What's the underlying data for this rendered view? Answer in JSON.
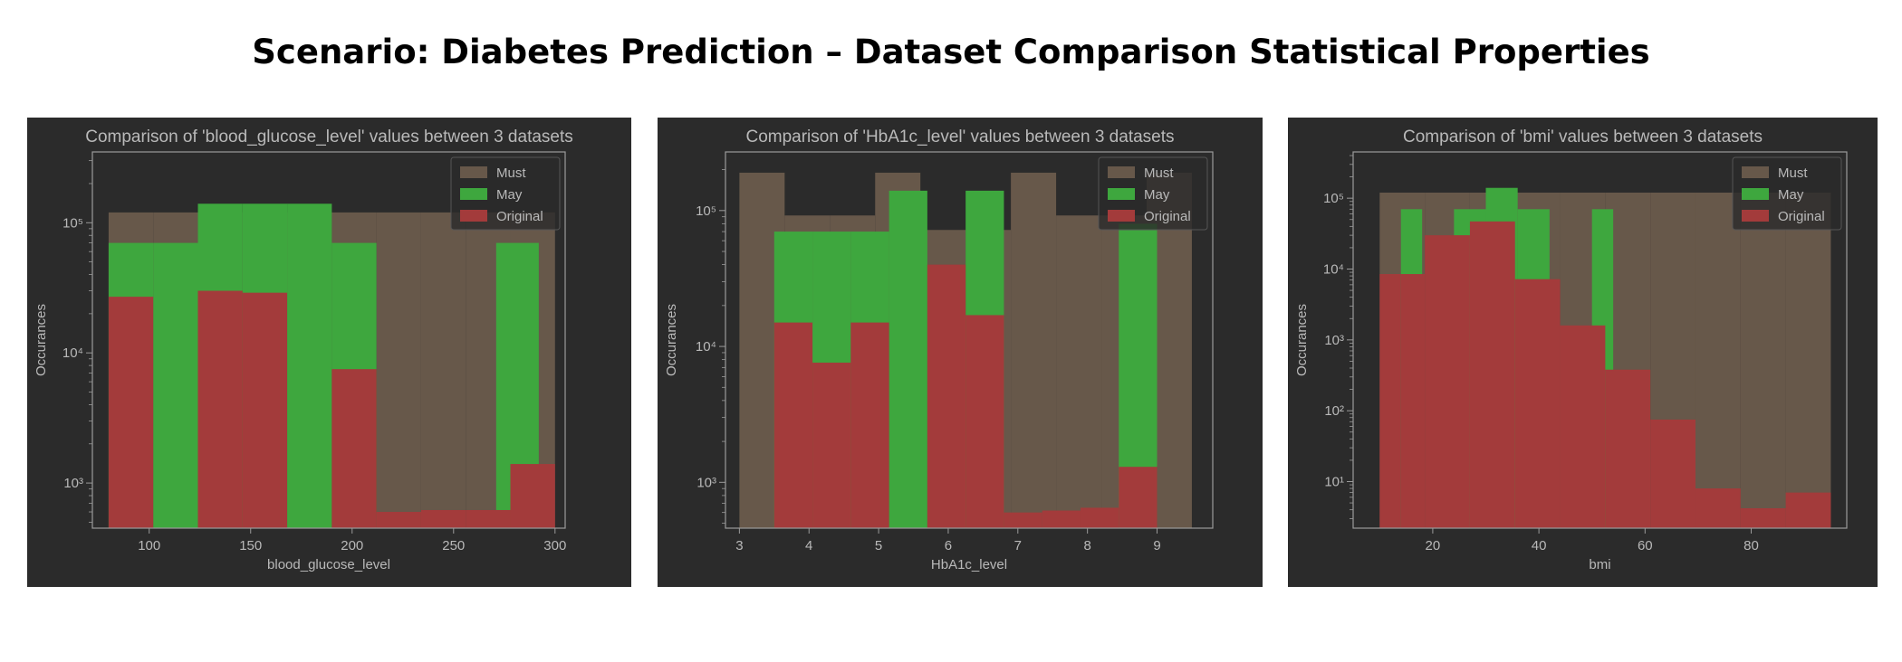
{
  "page": {
    "title": "Scenario: Diabetes Prediction – Dataset Comparison Statistical Properties"
  },
  "colors": {
    "background": "#2b2b2b",
    "text": "#b9b9b9",
    "Must": "#67584a",
    "May": "#3ea73e",
    "Original": "#a33b3b"
  },
  "chart_data": [
    {
      "type": "bar",
      "title": "Comparison of 'blood_glucose_level' values between 3 datasets",
      "xlabel": "blood_glucose_level",
      "ylabel": "Occurances",
      "yscale": "log",
      "xlim": [
        72,
        305
      ],
      "ylim": [
        450,
        350000
      ],
      "xticks": [
        100,
        150,
        200,
        250,
        300
      ],
      "yticks": [
        {
          "value": 1000,
          "label": "10³"
        },
        {
          "value": 10000,
          "label": "10⁴"
        },
        {
          "value": 100000,
          "label": "10⁵"
        }
      ],
      "legend_position": "upper right",
      "series": [
        {
          "name": "Must",
          "bins": [
            [
              80,
              102,
              120000
            ],
            [
              102,
              124,
              120000
            ],
            [
              124,
              146,
              120000
            ],
            [
              146,
              168,
              120000
            ],
            [
              168,
              190,
              120000
            ],
            [
              190,
              212,
              120000
            ],
            [
              212,
              234,
              120000
            ],
            [
              234,
              256,
              120000
            ],
            [
              256,
              278,
              120000
            ],
            [
              278,
              300,
              120000
            ]
          ]
        },
        {
          "name": "May",
          "bins": [
            [
              80,
              102,
              70000
            ],
            [
              102,
              124,
              70000
            ],
            [
              124,
              146,
              140000
            ],
            [
              146,
              168,
              140000
            ],
            [
              168,
              190,
              140000
            ],
            [
              190,
              212,
              70000
            ],
            [
              212,
              234,
              0
            ],
            [
              234,
              256,
              0
            ],
            [
              256,
              271,
              0
            ],
            [
              271,
              292,
              70000
            ]
          ]
        },
        {
          "name": "Original",
          "bins": [
            [
              80,
              102,
              27000
            ],
            [
              102,
              124,
              0
            ],
            [
              124,
              146,
              30000
            ],
            [
              146,
              168,
              29000
            ],
            [
              168,
              190,
              0
            ],
            [
              190,
              212,
              7500
            ],
            [
              212,
              234,
              600
            ],
            [
              234,
              256,
              620
            ],
            [
              256,
              278,
              620
            ],
            [
              278,
              300,
              1400
            ]
          ]
        }
      ]
    },
    {
      "type": "bar",
      "title": "Comparison of 'HbA1c_level' values between 3 datasets",
      "xlabel": "HbA1c_level",
      "ylabel": "Occurances",
      "yscale": "log",
      "xlim": [
        2.8,
        9.8
      ],
      "ylim": [
        460,
        270000
      ],
      "xticks": [
        3,
        4,
        5,
        6,
        7,
        8,
        9
      ],
      "yticks": [
        {
          "value": 1000,
          "label": "10³"
        },
        {
          "value": 10000,
          "label": "10⁴"
        },
        {
          "value": 100000,
          "label": "10⁵"
        }
      ],
      "legend_position": "upper right",
      "series": [
        {
          "name": "Must",
          "bins": [
            [
              3,
              3.65,
              190000
            ],
            [
              3.65,
              4.3,
              92000
            ],
            [
              4.3,
              4.95,
              92000
            ],
            [
              4.95,
              5.6,
              190000
            ],
            [
              5.6,
              6.25,
              72000
            ],
            [
              6.25,
              6.9,
              72000
            ],
            [
              6.9,
              7.55,
              190000
            ],
            [
              7.55,
              8.2,
              92000
            ],
            [
              8.2,
              8.85,
              92000
            ],
            [
              8.85,
              9.5,
              190000
            ]
          ]
        },
        {
          "name": "May",
          "bins": [
            [
              3.5,
              4.05,
              70000
            ],
            [
              4.05,
              4.6,
              70000
            ],
            [
              4.6,
              5.15,
              70000
            ],
            [
              5.15,
              5.7,
              140000
            ],
            [
              5.7,
              6.25,
              0
            ],
            [
              6.25,
              6.8,
              140000
            ],
            [
              6.8,
              7.35,
              0
            ],
            [
              7.35,
              7.9,
              0
            ],
            [
              7.9,
              8.45,
              0
            ],
            [
              8.45,
              9,
              80000
            ]
          ]
        },
        {
          "name": "Original",
          "bins": [
            [
              3.5,
              4.05,
              15000
            ],
            [
              4.05,
              4.6,
              7600
            ],
            [
              4.6,
              5.15,
              15000
            ],
            [
              5.15,
              5.7,
              0
            ],
            [
              5.7,
              6.25,
              40000
            ],
            [
              6.25,
              6.8,
              17000
            ],
            [
              6.8,
              7.35,
              600
            ],
            [
              7.35,
              7.9,
              620
            ],
            [
              7.9,
              8.45,
              650
            ],
            [
              8.45,
              9,
              1300
            ]
          ]
        }
      ]
    },
    {
      "type": "bar",
      "title": "Comparison of 'bmi' values between 3 datasets",
      "xlabel": "bmi",
      "ylabel": "Occurances",
      "yscale": "log",
      "xlim": [
        5,
        98
      ],
      "ylim": [
        2.2,
        450000
      ],
      "xticks": [
        20,
        40,
        60,
        80
      ],
      "yticks": [
        {
          "value": 10,
          "label": "10¹"
        },
        {
          "value": 100,
          "label": "10²"
        },
        {
          "value": 1000,
          "label": "10³"
        },
        {
          "value": 10000,
          "label": "10⁴"
        },
        {
          "value": 100000,
          "label": "10⁵"
        }
      ],
      "legend_position": "upper right",
      "series": [
        {
          "name": "Must",
          "bins": [
            [
              10,
              18.5,
              120000
            ],
            [
              18.5,
              27,
              120000
            ],
            [
              27,
              35.5,
              120000
            ],
            [
              35.5,
              44,
              120000
            ],
            [
              44,
              52.5,
              120000
            ],
            [
              52.5,
              61,
              120000
            ],
            [
              61,
              69.5,
              120000
            ],
            [
              69.5,
              78,
              120000
            ],
            [
              78,
              86.5,
              120000
            ],
            [
              86.5,
              95,
              120000
            ]
          ]
        },
        {
          "name": "May",
          "bins": [
            [
              14,
              18,
              70000
            ],
            [
              18,
              24,
              0
            ],
            [
              24,
              30,
              70000
            ],
            [
              30,
              36,
              140000
            ],
            [
              36,
              42,
              70000
            ],
            [
              42,
              48,
              0
            ],
            [
              48,
              50,
              0
            ],
            [
              50,
              54,
              70000
            ]
          ]
        },
        {
          "name": "Original",
          "bins": [
            [
              10,
              14,
              8500
            ],
            [
              14,
              18.5,
              8500
            ],
            [
              18.5,
              27,
              30000
            ],
            [
              27,
              35.5,
              47000
            ],
            [
              35.5,
              44,
              7200
            ],
            [
              44,
              52.5,
              1600
            ],
            [
              52.5,
              61,
              380
            ],
            [
              61,
              69.5,
              75
            ],
            [
              69.5,
              78,
              8
            ],
            [
              78,
              86.5,
              4.2
            ],
            [
              86.5,
              95,
              7
            ]
          ]
        }
      ]
    }
  ]
}
